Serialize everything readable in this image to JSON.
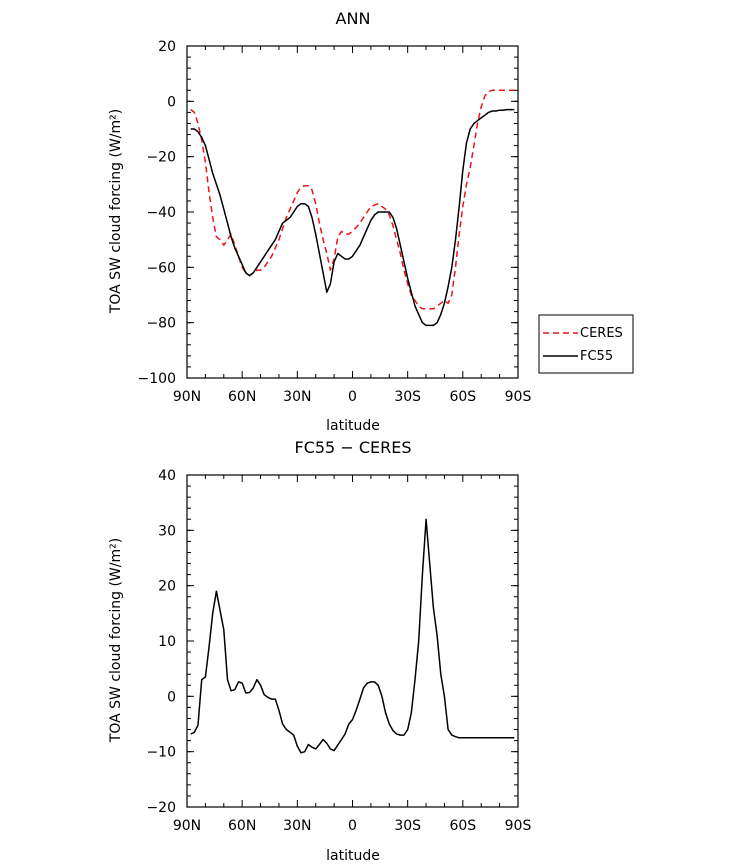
{
  "colors": {
    "ceres": "#e8141a",
    "fc55": "#000000"
  },
  "chart_data": [
    {
      "type": "line",
      "title": "ANN",
      "xlabel": "latitude",
      "ylabel": "TOA SW cloud forcing (W/m²)",
      "xlim": [
        90,
        -90
      ],
      "ylim": [
        -100,
        20
      ],
      "xticks": [
        90,
        60,
        30,
        0,
        -30,
        -60,
        -90
      ],
      "xtick_labels": [
        "90N",
        "60N",
        "30N",
        "0",
        "30S",
        "60S",
        "90S"
      ],
      "yticks": [
        -100,
        -80,
        -60,
        -40,
        -20,
        0,
        20
      ],
      "ytick_labels": [
        "−100",
        "−80",
        "−60",
        "−40",
        "−20",
        "0",
        "20"
      ],
      "legend": {
        "placement": "outside-right"
      },
      "series": [
        {
          "name": "CERES",
          "color": "#e8141a",
          "style": "dashed",
          "x": [
            88,
            86,
            84,
            82,
            80,
            78,
            76,
            74,
            72,
            70,
            68,
            66,
            64,
            62,
            60,
            58,
            56,
            54,
            52,
            50,
            48,
            46,
            44,
            42,
            40,
            38,
            36,
            34,
            32,
            30,
            28,
            26,
            24,
            22,
            20,
            18,
            16,
            14,
            12,
            10,
            8,
            6,
            4,
            2,
            0,
            -2,
            -4,
            -6,
            -8,
            -10,
            -12,
            -14,
            -16,
            -18,
            -20,
            -22,
            -24,
            -26,
            -28,
            -30,
            -32,
            -34,
            -36,
            -38,
            -40,
            -42,
            -44,
            -46,
            -48,
            -50,
            -52,
            -54,
            -56,
            -58,
            -60,
            -62,
            -64,
            -66,
            -68,
            -70,
            -72,
            -74,
            -76,
            -78,
            -80,
            -82,
            -84,
            -86,
            -88
          ],
          "y": [
            -3,
            -4,
            -8,
            -14,
            -22,
            -33,
            -42,
            -49,
            -50,
            -52,
            -50,
            -48,
            -52,
            -56,
            -60,
            -62,
            -63,
            -62,
            -61,
            -61,
            -60,
            -58,
            -56,
            -53,
            -50,
            -46,
            -42,
            -39,
            -36,
            -33,
            -31,
            -30.5,
            -30.5,
            -32,
            -37,
            -44,
            -50,
            -55,
            -61,
            -57,
            -49,
            -47,
            -48,
            -48,
            -47,
            -45.5,
            -44,
            -42,
            -40,
            -38,
            -37.5,
            -37,
            -38,
            -39,
            -41,
            -45,
            -50,
            -55,
            -61,
            -66,
            -70,
            -72,
            -74,
            -75,
            -75,
            -75,
            -75,
            -74,
            -73,
            -72,
            -73,
            -70,
            -60,
            -48,
            -38,
            -30,
            -24,
            -16,
            -8,
            -2,
            2,
            3.5,
            4,
            4,
            4,
            4,
            4,
            4,
            4
          ]
        },
        {
          "name": "FC55",
          "color": "#000000",
          "style": "solid",
          "x": [
            88,
            86,
            84,
            82,
            80,
            78,
            76,
            74,
            72,
            70,
            68,
            66,
            64,
            62,
            60,
            58,
            56,
            54,
            52,
            50,
            48,
            46,
            44,
            42,
            40,
            38,
            36,
            34,
            32,
            30,
            28,
            26,
            24,
            22,
            20,
            18,
            16,
            14,
            12,
            10,
            8,
            6,
            4,
            2,
            0,
            -2,
            -4,
            -6,
            -8,
            -10,
            -12,
            -14,
            -16,
            -18,
            -20,
            -22,
            -24,
            -26,
            -28,
            -30,
            -32,
            -34,
            -36,
            -38,
            -40,
            -42,
            -44,
            -46,
            -48,
            -50,
            -52,
            -54,
            -56,
            -58,
            -60,
            -62,
            -64,
            -66,
            -68,
            -70,
            -72,
            -74,
            -76,
            -78,
            -80,
            -82,
            -84,
            -86,
            -88
          ],
          "y": [
            -10,
            -10,
            -11,
            -13,
            -16,
            -21,
            -26,
            -30,
            -34,
            -39,
            -44,
            -49,
            -53,
            -56,
            -59,
            -62,
            -63,
            -62,
            -60,
            -58,
            -56,
            -54,
            -52,
            -50,
            -47,
            -44,
            -43,
            -42,
            -40,
            -38,
            -37,
            -37,
            -38,
            -42,
            -48,
            -55,
            -62,
            -69,
            -66,
            -58,
            -55,
            -56,
            -57,
            -57,
            -56,
            -54,
            -52,
            -49,
            -46,
            -43,
            -41,
            -40,
            -40,
            -40,
            -40,
            -42,
            -46,
            -52,
            -58,
            -64,
            -69,
            -74,
            -77,
            -80,
            -81,
            -81,
            -81,
            -80,
            -77,
            -73,
            -67,
            -60,
            -50,
            -38,
            -25,
            -15,
            -10,
            -8,
            -7,
            -6,
            -5,
            -4,
            -3.5,
            -3.5,
            -3.2,
            -3.2,
            -3,
            -3,
            -3
          ]
        }
      ]
    },
    {
      "type": "line",
      "title": "FC55 − CERES",
      "xlabel": "latitude",
      "ylabel": "TOA SW cloud forcing (W/m²)",
      "xlim": [
        90,
        -90
      ],
      "ylim": [
        -20,
        40
      ],
      "xticks": [
        90,
        60,
        30,
        0,
        -30,
        -60,
        -90
      ],
      "xtick_labels": [
        "90N",
        "60N",
        "30N",
        "0",
        "30S",
        "60S",
        "90S"
      ],
      "yticks": [
        -20,
        -10,
        0,
        10,
        20,
        30,
        40
      ],
      "ytick_labels": [
        "−20",
        "−10",
        "0",
        "10",
        "20",
        "30",
        "40"
      ],
      "series": [
        {
          "color": "#000000",
          "style": "solid",
          "x": [
            88,
            86,
            84,
            82,
            80,
            78,
            76,
            74,
            72,
            70,
            68,
            66,
            64,
            62,
            60,
            58,
            56,
            54,
            52,
            50,
            48,
            46,
            44,
            42,
            40,
            38,
            36,
            34,
            32,
            30,
            28,
            26,
            24,
            22,
            20,
            18,
            16,
            14,
            12,
            10,
            8,
            6,
            4,
            2,
            0,
            -2,
            -4,
            -6,
            -8,
            -10,
            -12,
            -14,
            -16,
            -18,
            -20,
            -22,
            -24,
            -26,
            -28,
            -30,
            -32,
            -34,
            -36,
            -38,
            -40,
            -42,
            -44,
            -46,
            -48,
            -50,
            -52,
            -54,
            -56,
            -58,
            -60,
            -62,
            -64,
            -66,
            -68,
            -70,
            -72,
            -74,
            -76,
            -78,
            -80,
            -82,
            -84,
            -86,
            -88
          ],
          "y": [
            -6.8,
            -6.5,
            -5.2,
            3,
            3.5,
            9,
            15,
            19,
            15.5,
            12,
            3,
            1,
            1.2,
            2.6,
            2.4,
            0.6,
            0.7,
            1.5,
            3,
            2,
            0.3,
            -0.2,
            -0.5,
            -0.5,
            -2.5,
            -5,
            -6,
            -6.5,
            -7,
            -9,
            -10.2,
            -10,
            -8.7,
            -9.2,
            -9.5,
            -8.7,
            -7.8,
            -8.5,
            -9.5,
            -9.8,
            -8.8,
            -7.8,
            -6.8,
            -5,
            -4.2,
            -2.5,
            -0.5,
            1.5,
            2.4,
            2.6,
            2.6,
            2,
            0,
            -3,
            -5,
            -6.2,
            -6.8,
            -7,
            -7,
            -6,
            -3,
            3,
            10,
            22,
            32,
            24,
            16,
            11,
            4,
            0,
            -6,
            -7,
            -7.3,
            -7.5,
            -7.5,
            -7.5,
            -7.5,
            -7.5,
            -7.5,
            -7.5,
            -7.5,
            -7.5,
            -7.5,
            -7.5,
            -7.5,
            -7.5,
            -7.5,
            -7.5,
            -7.5
          ]
        }
      ]
    }
  ]
}
